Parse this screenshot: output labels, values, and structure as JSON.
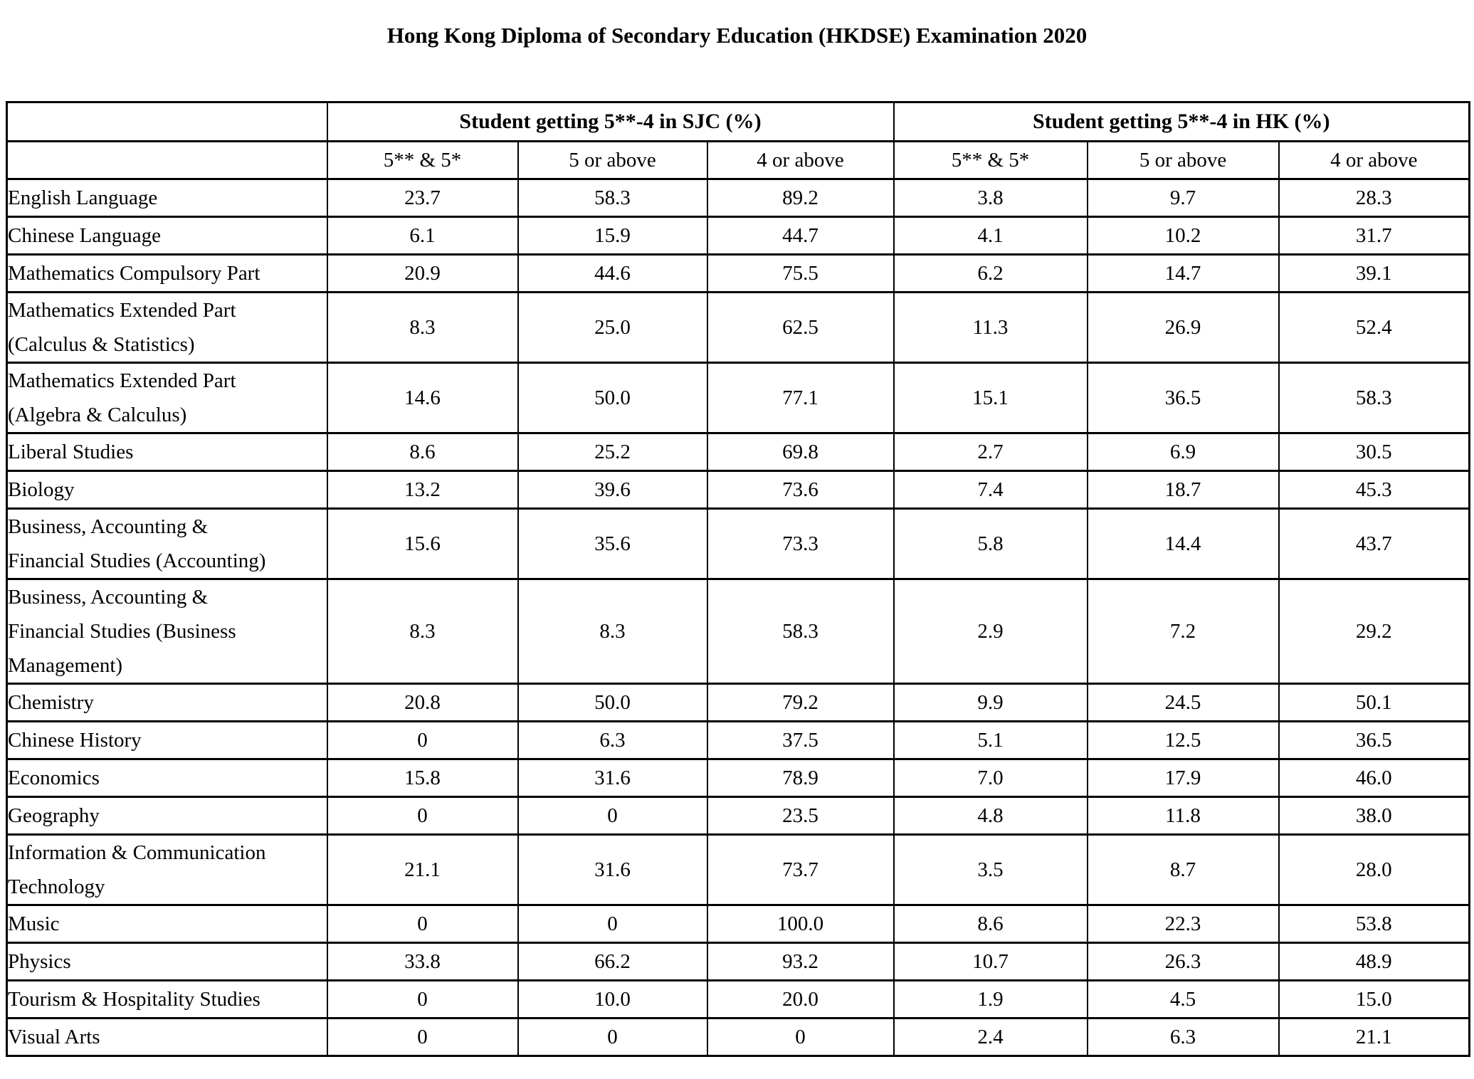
{
  "title": "Hong Kong Diploma of Secondary Education (HKDSE) Examination 2020",
  "table": {
    "group_headers": [
      "Student getting 5**-4 in SJC (%)",
      "Student getting 5**-4 in HK (%)"
    ],
    "sub_headers": [
      "5** & 5*",
      "5 or above",
      "4 or above",
      "5** & 5*",
      "5 or above",
      "4 or above"
    ],
    "rows": [
      {
        "label": "English Language",
        "values": [
          "23.7",
          "58.3",
          "89.2",
          "3.8",
          "9.7",
          "28.3"
        ]
      },
      {
        "label": "Chinese Language",
        "values": [
          "6.1",
          "15.9",
          "44.7",
          "4.1",
          "10.2",
          "31.7"
        ]
      },
      {
        "label": "Mathematics Compulsory Part",
        "values": [
          "20.9",
          "44.6",
          "75.5",
          "6.2",
          "14.7",
          "39.1"
        ]
      },
      {
        "label": "Mathematics Extended Part\n(Calculus & Statistics)",
        "values": [
          "8.3",
          "25.0",
          "62.5",
          "11.3",
          "26.9",
          "52.4"
        ]
      },
      {
        "label": "Mathematics Extended Part\n(Algebra & Calculus)",
        "values": [
          "14.6",
          "50.0",
          "77.1",
          "15.1",
          "36.5",
          "58.3"
        ]
      },
      {
        "label": "Liberal Studies",
        "values": [
          "8.6",
          "25.2",
          "69.8",
          "2.7",
          "6.9",
          "30.5"
        ]
      },
      {
        "label": "Biology",
        "values": [
          "13.2",
          "39.6",
          "73.6",
          "7.4",
          "18.7",
          "45.3"
        ]
      },
      {
        "label": "Business, Accounting &\nFinancial Studies (Accounting)",
        "values": [
          "15.6",
          "35.6",
          "73.3",
          "5.8",
          "14.4",
          "43.7"
        ]
      },
      {
        "label": "Business, Accounting &\nFinancial Studies (Business\nManagement)",
        "values": [
          "8.3",
          "8.3",
          "58.3",
          "2.9",
          "7.2",
          "29.2"
        ]
      },
      {
        "label": "Chemistry",
        "values": [
          "20.8",
          "50.0",
          "79.2",
          "9.9",
          "24.5",
          "50.1"
        ]
      },
      {
        "label": "Chinese History",
        "values": [
          "0",
          "6.3",
          "37.5",
          "5.1",
          "12.5",
          "36.5"
        ]
      },
      {
        "label": "Economics",
        "values": [
          "15.8",
          "31.6",
          "78.9",
          "7.0",
          "17.9",
          "46.0"
        ]
      },
      {
        "label": "Geography",
        "values": [
          "0",
          "0",
          "23.5",
          "4.8",
          "11.8",
          "38.0"
        ]
      },
      {
        "label": "Information & Communication\nTechnology",
        "values": [
          "21.1",
          "31.6",
          "73.7",
          "3.5",
          "8.7",
          "28.0"
        ]
      },
      {
        "label": "Music",
        "values": [
          "0",
          "0",
          "100.0",
          "8.6",
          "22.3",
          "53.8"
        ]
      },
      {
        "label": "Physics",
        "values": [
          "33.8",
          "66.2",
          "93.2",
          "10.7",
          "26.3",
          "48.9"
        ]
      },
      {
        "label": "Tourism & Hospitality Studies",
        "values": [
          "0",
          "10.0",
          "20.0",
          "1.9",
          "4.5",
          "15.0"
        ]
      },
      {
        "label": "Visual Arts",
        "values": [
          "0",
          "0",
          "0",
          "2.4",
          "6.3",
          "21.1"
        ]
      }
    ]
  }
}
